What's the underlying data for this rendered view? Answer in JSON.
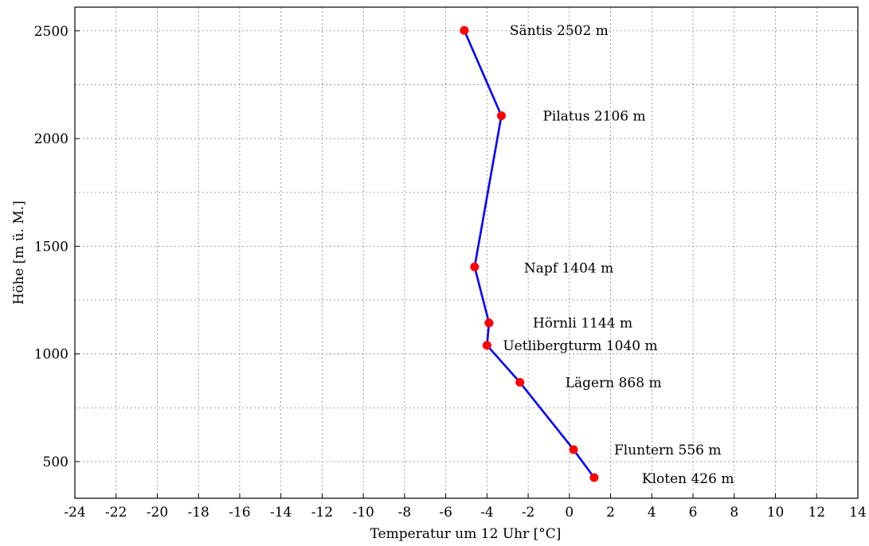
{
  "chart_data": {
    "type": "line",
    "title": "",
    "xlabel": "Temperatur um 12 Uhr [°C]",
    "ylabel": "Höhe [m ü. M.]",
    "xlim": [
      -24,
      14
    ],
    "ylim": [
      330,
      2610
    ],
    "x_ticks": [
      -24,
      -22,
      -20,
      -18,
      -16,
      -14,
      -12,
      -10,
      -8,
      -6,
      -4,
      -2,
      0,
      2,
      4,
      6,
      8,
      10,
      12,
      14
    ],
    "y_ticks": [
      500,
      1000,
      1500,
      2000,
      2500
    ],
    "y_minor_grid": [
      750,
      1250,
      1750,
      2250
    ],
    "grid": true,
    "line_color": "#0000ff",
    "marker_color": "#ff0000",
    "points": [
      {
        "label": "Säntis 2502 m",
        "x": -5.1,
        "y": 2502
      },
      {
        "label": "Pilatus 2106 m",
        "x": -3.3,
        "y": 2106
      },
      {
        "label": "Napf 1404 m",
        "x": -4.6,
        "y": 1404
      },
      {
        "label": "Hörnli 1144 m",
        "x": -3.9,
        "y": 1144
      },
      {
        "label": "Uetlibergturm 1040 m",
        "x": -4.0,
        "y": 1040
      },
      {
        "label": "Lägern 868 m",
        "x": -2.4,
        "y": 868
      },
      {
        "label": "Fluntern 556 m",
        "x": 0.2,
        "y": 556
      },
      {
        "label": "Kloten 426 m",
        "x": 1.2,
        "y": 426
      }
    ]
  }
}
